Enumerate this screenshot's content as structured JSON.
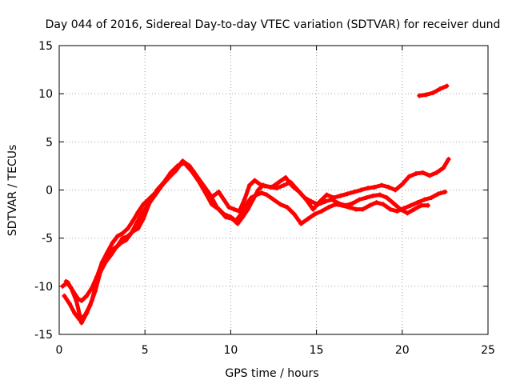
{
  "chart_data": {
    "type": "scatter",
    "title": "Day 044 of 2016, Sidereal Day-to-day VTEC variation (SDTVAR) for receiver dund",
    "xlabel": "GPS time / hours",
    "ylabel": "SDTVAR / TECUs",
    "xlim": [
      0,
      25
    ],
    "ylim": [
      -15,
      15
    ],
    "xticks": [
      "0",
      "5",
      "10",
      "15",
      "20",
      "25"
    ],
    "yticks": [
      "-15",
      "-10",
      "-5",
      "0",
      "5",
      "10",
      "15"
    ],
    "grid": true,
    "legend": false,
    "color": "#ff0000",
    "marker": "plus",
    "series": [
      {
        "x": [
          0.2,
          0.5,
          0.8,
          1.1,
          1.3,
          1.6,
          1.9,
          2.2,
          2.5,
          2.8,
          3.1,
          3.4,
          3.7,
          4.0,
          4.3,
          4.6,
          4.9,
          5.2,
          5.6,
          6.0,
          6.4,
          6.8,
          7.2,
          7.5,
          7.8,
          8.1,
          8.4,
          8.7,
          9.0,
          9.3,
          9.6,
          9.9,
          10.2,
          10.5,
          10.8,
          11.1,
          11.4,
          11.7,
          12.0,
          12.4,
          12.8,
          13.2,
          13.6,
          14.0,
          14.4,
          14.8,
          15.2,
          15.6,
          16.0,
          16.4,
          16.8,
          17.2,
          17.6,
          18.0,
          18.4,
          18.8,
          19.2,
          19.6,
          20.0,
          20.4,
          20.8,
          21.2,
          21.6,
          22.0,
          22.4,
          22.7
        ],
        "y": [
          -10.0,
          -9.6,
          -10.5,
          -11.3,
          -11.5,
          -11.0,
          -10.2,
          -9.0,
          -7.5,
          -6.5,
          -5.5,
          -4.8,
          -4.5,
          -4.0,
          -3.2,
          -2.3,
          -1.5,
          -1.0,
          -0.3,
          0.5,
          1.3,
          2.0,
          3.0,
          2.4,
          2.0,
          1.2,
          0.2,
          -0.8,
          -0.6,
          -0.2,
          -1.0,
          -1.8,
          -2.0,
          -2.2,
          -1.0,
          0.5,
          1.0,
          0.6,
          0.4,
          0.3,
          0.8,
          1.3,
          0.4,
          -0.2,
          -1.0,
          -2.0,
          -1.2,
          -0.5,
          -0.8,
          -0.6,
          -0.4,
          -0.2,
          0.0,
          0.2,
          0.3,
          0.5,
          0.3,
          0.0,
          0.6,
          1.4,
          1.7,
          1.8,
          1.5,
          1.8,
          2.3,
          3.2
        ]
      },
      {
        "x": [
          0.3,
          0.6,
          0.9,
          1.2,
          1.5,
          1.8,
          2.1,
          2.4,
          2.7,
          3.0,
          3.3,
          3.6,
          3.9,
          4.2,
          4.5,
          4.8,
          5.2,
          5.6,
          6.0,
          6.4,
          6.8,
          7.2,
          7.6,
          8.0,
          8.4,
          8.8,
          9.2,
          9.6,
          10.0,
          10.3,
          10.6,
          10.9,
          11.2,
          11.5,
          11.8,
          12.1,
          12.5,
          12.9,
          13.3,
          13.7,
          14.1,
          14.5,
          14.9,
          15.3,
          15.7,
          16.1,
          16.5,
          16.9,
          17.3,
          17.7,
          18.1,
          18.5,
          18.9,
          19.3,
          19.7,
          20.1,
          20.5,
          20.9,
          21.3,
          21.7,
          22.1,
          22.5
        ],
        "y": [
          -11.0,
          -11.8,
          -12.8,
          -13.5,
          -13.0,
          -12.0,
          -10.5,
          -8.5,
          -7.5,
          -6.8,
          -6.0,
          -5.5,
          -5.2,
          -4.5,
          -3.5,
          -2.5,
          -1.5,
          -0.5,
          0.5,
          1.5,
          2.2,
          3.0,
          2.5,
          1.5,
          0.5,
          -0.5,
          -1.8,
          -2.5,
          -2.8,
          -3.2,
          -2.5,
          -1.5,
          -0.8,
          -0.5,
          -0.3,
          -0.5,
          -1.0,
          -1.5,
          -1.8,
          -2.5,
          -3.5,
          -3.0,
          -2.5,
          -2.2,
          -1.8,
          -1.5,
          -1.6,
          -1.8,
          -2.0,
          -2.0,
          -1.6,
          -1.3,
          -1.5,
          -2.0,
          -2.2,
          -1.9,
          -1.6,
          -1.3,
          -1.0,
          -0.8,
          -0.4,
          -0.2
        ]
      },
      {
        "x": [
          0.4,
          0.7,
          1.0,
          1.3,
          1.6,
          1.9,
          2.2,
          2.5,
          2.8,
          3.1,
          3.4,
          3.7,
          4.0,
          4.3,
          4.6,
          4.9,
          5.3,
          5.7,
          6.1,
          6.5,
          6.9,
          7.3,
          7.7,
          8.1,
          8.5,
          8.9,
          9.3,
          9.7,
          10.1,
          10.4,
          10.7,
          11.0,
          11.3,
          11.6,
          11.9,
          12.3,
          12.7,
          13.1,
          13.5,
          13.9,
          14.3,
          14.7,
          15.1,
          15.5,
          15.9,
          16.3,
          16.7,
          17.1,
          17.5,
          17.9,
          18.3,
          18.7,
          19.1,
          19.5,
          19.9,
          20.3,
          20.7,
          21.1,
          21.5
        ],
        "y": [
          -9.5,
          -10.2,
          -11.5,
          -13.8,
          -12.8,
          -11.5,
          -9.5,
          -8.0,
          -7.0,
          -6.2,
          -5.8,
          -5.0,
          -4.8,
          -4.3,
          -4.0,
          -3.0,
          -1.2,
          0.0,
          0.8,
          1.8,
          2.5,
          2.8,
          2.0,
          1.0,
          -0.2,
          -1.5,
          -2.0,
          -2.8,
          -3.0,
          -3.5,
          -2.8,
          -2.0,
          -1.0,
          0.0,
          0.5,
          0.3,
          0.2,
          0.5,
          0.8,
          0.0,
          -0.8,
          -1.2,
          -1.5,
          -1.2,
          -1.0,
          -1.4,
          -1.6,
          -1.4,
          -1.0,
          -0.8,
          -0.6,
          -0.5,
          -0.8,
          -1.4,
          -2.0,
          -2.4,
          -2.0,
          -1.6,
          -1.6
        ]
      },
      {
        "x": [
          21.0,
          21.4,
          21.8,
          22.2,
          22.6
        ],
        "y": [
          9.8,
          9.9,
          10.1,
          10.5,
          10.8
        ]
      }
    ]
  }
}
